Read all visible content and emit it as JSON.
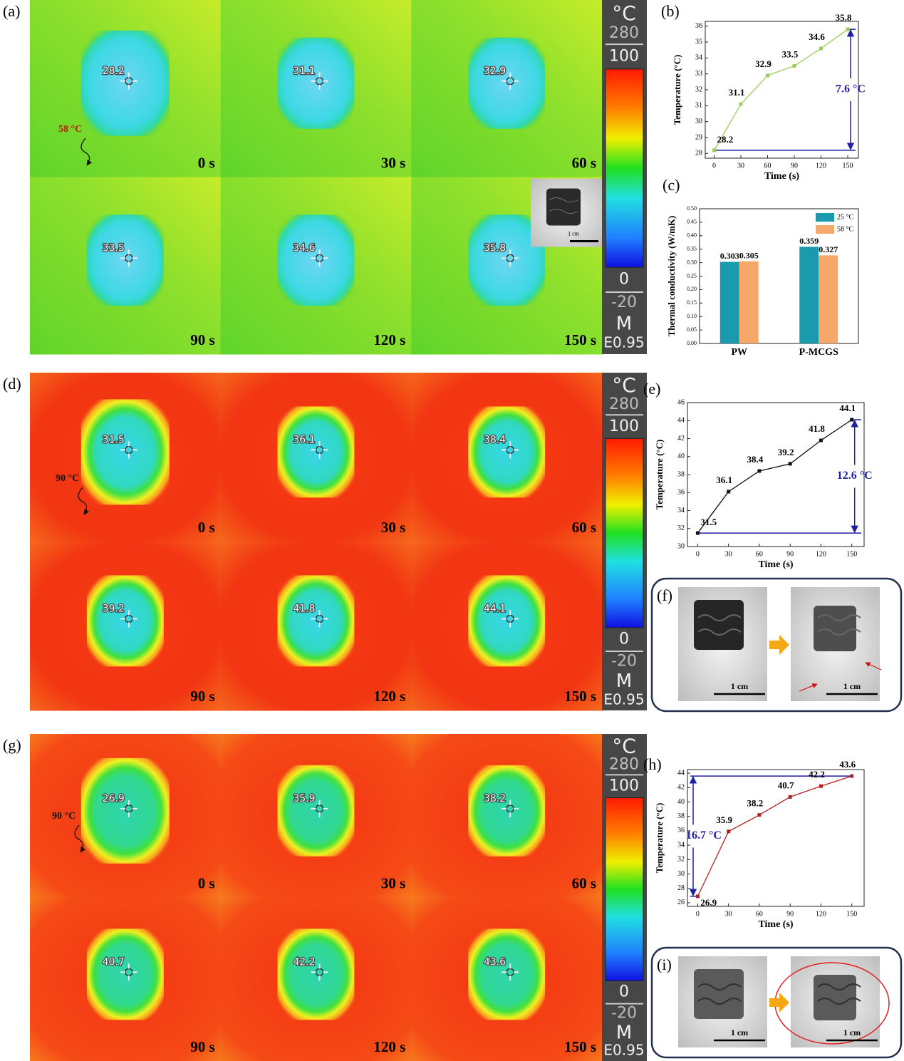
{
  "thermal_panels": [
    {
      "label": "(a)",
      "annotation": "58 °C",
      "times": [
        "0 s",
        "30 s",
        "60 s",
        "90 s",
        "120 s",
        "150 s"
      ],
      "readings": [
        28.2,
        31.1,
        32.9,
        33.5,
        34.6,
        35.8
      ],
      "colorbar": {
        "unit": "°C",
        "range_max": "280",
        "top": "100",
        "bottom": "0",
        "range_min": "-20",
        "mode": "M",
        "emissivity": "E0.95"
      },
      "inset_scale": "1 cm"
    },
    {
      "label": "(d)",
      "annotation": "90 °C",
      "times": [
        "0 s",
        "30 s",
        "60 s",
        "90 s",
        "120 s",
        "150 s"
      ],
      "readings": [
        31.5,
        36.1,
        38.4,
        39.2,
        41.8,
        44.1
      ],
      "colorbar": {
        "unit": "°C",
        "range_max": "280",
        "top": "100",
        "bottom": "0",
        "range_min": "-20",
        "mode": "M",
        "emissivity": "E0.95"
      }
    },
    {
      "label": "(g)",
      "annotation": "90 °C",
      "times": [
        "0 s",
        "30 s",
        "60 s",
        "90 s",
        "120 s",
        "150 s"
      ],
      "readings": [
        26.9,
        35.9,
        38.2,
        40.7,
        42.2,
        43.6
      ],
      "colorbar": {
        "unit": "°C",
        "range_max": "280",
        "top": "100",
        "bottom": "0",
        "range_min": "-20",
        "mode": "M",
        "emissivity": "E0.95"
      }
    }
  ],
  "chart_data": [
    {
      "type": "line",
      "label": "(b)",
      "x": [
        0,
        30,
        60,
        90,
        120,
        150
      ],
      "values": [
        28.2,
        31.1,
        32.9,
        33.5,
        34.6,
        35.8
      ],
      "color": "#9acd59",
      "xlim": [
        -10,
        162
      ],
      "ylim": [
        27.7,
        36.3
      ],
      "xticks": [
        0,
        30,
        60,
        90,
        120,
        150
      ],
      "yticks": [
        28,
        29,
        30,
        31,
        32,
        33,
        34,
        35,
        36
      ],
      "xlabel": "Time (s)",
      "ylabel": "Temperature (°C)",
      "annotation": "7.6 °C",
      "annotation_color": "#1f1fa8",
      "annotation_side": "right"
    },
    {
      "type": "bar",
      "label": "(c)",
      "categories": [
        "PW",
        "P-MCGS"
      ],
      "series": [
        {
          "name": "25 °C",
          "color": "#1a9aad",
          "values": [
            0.303,
            0.359
          ]
        },
        {
          "name": "58 °C",
          "color": "#f5a86a",
          "values": [
            0.305,
            0.327
          ]
        }
      ],
      "ylim": [
        0,
        0.5
      ],
      "yticks": [
        {
          "value": 0,
          "label": "0.00"
        },
        {
          "value": 0.05,
          "label": "0.05"
        },
        {
          "value": 0.1,
          "label": "0.10"
        },
        {
          "value": 0.15,
          "label": "0.15"
        },
        {
          "value": 0.2,
          "label": "0.20"
        },
        {
          "value": 0.25,
          "label": "0.25"
        },
        {
          "value": 0.3,
          "label": "0.30"
        },
        {
          "value": 0.35,
          "label": "0.35"
        },
        {
          "value": 0.4,
          "label": "0.40"
        },
        {
          "value": 0.45,
          "label": "0.45"
        },
        {
          "value": 0.5,
          "label": "0.50"
        }
      ],
      "ylabel": "Thermal conductivity (W/mK)",
      "legend": "top-right"
    },
    {
      "type": "line",
      "label": "(e)",
      "x": [
        0,
        30,
        60,
        90,
        120,
        150
      ],
      "values": [
        31.5,
        36.1,
        38.4,
        39.2,
        41.8,
        44.1
      ],
      "color": "#111111",
      "xlim": [
        -10,
        162
      ],
      "ylim": [
        30,
        46
      ],
      "xticks": [
        0,
        30,
        60,
        90,
        120,
        150
      ],
      "yticks": [
        30,
        32,
        34,
        36,
        38,
        40,
        42,
        44,
        46
      ],
      "xlabel": "Time (s)",
      "ylabel": "Temperature (°C)",
      "annotation": "12.6 °C",
      "annotation_color": "#1f1fa8",
      "annotation_side": "right"
    },
    {
      "type": "line",
      "label": "(h)",
      "x": [
        0,
        30,
        60,
        90,
        120,
        150
      ],
      "values": [
        26.9,
        35.9,
        38.2,
        40.7,
        42.2,
        43.6
      ],
      "color": "#b22222",
      "xlim": [
        -10,
        162
      ],
      "ylim": [
        25.5,
        44.5
      ],
      "xticks": [
        0,
        30,
        60,
        90,
        120,
        150
      ],
      "yticks": [
        26,
        28,
        30,
        32,
        34,
        36,
        38,
        40,
        42,
        44
      ],
      "xlabel": "Time (s)",
      "ylabel": "Temperature (°C)",
      "annotation": "16.7 °C",
      "annotation_color": "#1f1fa8",
      "annotation_side": "left"
    }
  ],
  "photo_panels": [
    {
      "label": "(f)",
      "scales": [
        "1 cm",
        "1 cm"
      ]
    },
    {
      "label": "(i)",
      "scales": [
        "1 cm",
        "1 cm"
      ]
    }
  ]
}
